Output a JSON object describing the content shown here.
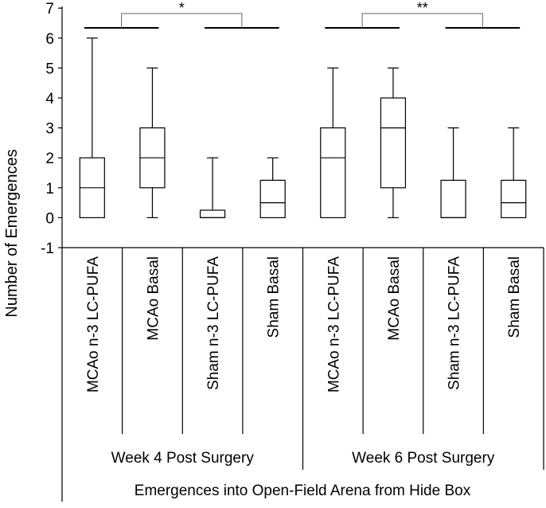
{
  "chart_data": {
    "type": "boxplot",
    "ylabel": "Number of Emergences",
    "xlabel": "Emergences into Open-Field Arena from Hide Box",
    "ylim": [
      -1,
      7
    ],
    "yticks": [
      -1,
      0,
      1,
      2,
      3,
      4,
      5,
      6,
      7
    ],
    "grid": false,
    "groups": [
      {
        "label": "Week 4 Post Surgery",
        "categories": [
          0,
          1,
          2,
          3
        ]
      },
      {
        "label": "Week 6 Post Surgery",
        "categories": [
          4,
          5,
          6,
          7
        ]
      }
    ],
    "categories": [
      "MCAo n-3 LC-PUFA",
      "MCAo Basal",
      "Sham n-3 LC-PUFA",
      "Sham Basal",
      "MCAo n-3 LC-PUFA",
      "MCAo Basal",
      "Sham n-3 LC-PUFA",
      "Sham Basal"
    ],
    "boxes": [
      {
        "min": 0,
        "q1": 0,
        "median": 1,
        "q3": 2,
        "max": 6
      },
      {
        "min": 0,
        "q1": 1,
        "median": 2,
        "q3": 3,
        "max": 5
      },
      {
        "min": 0,
        "q1": 0,
        "median": 0,
        "q3": 0.25,
        "max": 2
      },
      {
        "min": 0,
        "q1": 0,
        "median": 0.5,
        "q3": 1.25,
        "max": 2
      },
      {
        "min": 0,
        "q1": 0,
        "median": 2,
        "q3": 3,
        "max": 5
      },
      {
        "min": 0,
        "q1": 1,
        "median": 3,
        "q3": 4,
        "max": 5
      },
      {
        "min": 0,
        "q1": 0,
        "median": 0,
        "q3": 1.25,
        "max": 3
      },
      {
        "min": 0,
        "q1": 0,
        "median": 0.5,
        "q3": 1.25,
        "max": 3
      }
    ],
    "significance": [
      {
        "from_categories": [
          0,
          1
        ],
        "to_categories": [
          2,
          3
        ],
        "label": "*"
      },
      {
        "from_categories": [
          4,
          5
        ],
        "to_categories": [
          6,
          7
        ],
        "label": "**"
      }
    ]
  }
}
